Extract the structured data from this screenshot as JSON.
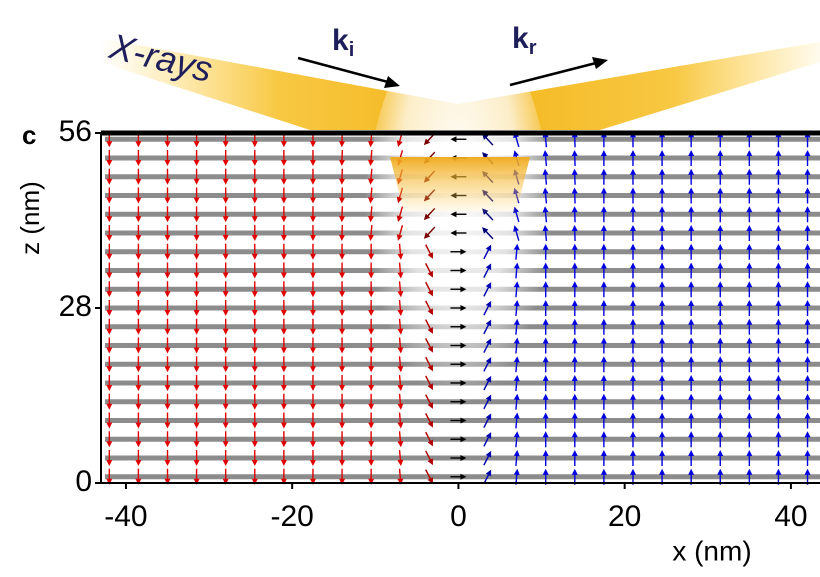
{
  "chart_data": {
    "type": "vector-field",
    "panel_label": "c",
    "annotations": {
      "beam": "X-rays",
      "k_i": {
        "base": "k",
        "sub": "i"
      },
      "k_r": {
        "base": "k",
        "sub": "r"
      }
    },
    "xlabel": "x (nm)",
    "ylabel": "z (nm)",
    "xlim": [
      -43,
      43.5
    ],
    "ylim": [
      0,
      56
    ],
    "xticks": [
      -40,
      -20,
      0,
      20,
      40
    ],
    "yticks": [
      0,
      28,
      56
    ],
    "colors": {
      "down": "#e00000",
      "up": "#0000e0",
      "in_plane": "#000000"
    },
    "x": [
      -42,
      -38.5,
      -35,
      -31.5,
      -28,
      -24.5,
      -21,
      -17.5,
      -14,
      -10.5,
      -7,
      -3.5,
      0,
      3.5,
      7,
      10.5,
      14,
      17.5,
      21,
      24.5,
      28,
      31.5,
      35,
      38.5,
      42
    ],
    "z": [
      1,
      4,
      7,
      10,
      13,
      16,
      19,
      22,
      25,
      28,
      31,
      34,
      37,
      40,
      43,
      46,
      49,
      52,
      55
    ],
    "angles": [
      [
        -90,
        -90,
        -90,
        -90,
        -90,
        -90,
        -90,
        -90,
        -90,
        -90,
        -85,
        -63,
        0,
        63,
        85,
        90,
        90,
        90,
        90,
        90,
        90,
        90,
        90,
        90,
        90
      ],
      [
        -90,
        -90,
        -90,
        -90,
        -90,
        -90,
        -90,
        -90,
        -90,
        -90,
        -85,
        -63,
        0,
        63,
        85,
        90,
        90,
        90,
        90,
        90,
        90,
        90,
        90,
        90,
        90
      ],
      [
        -90,
        -90,
        -90,
        -90,
        -90,
        -90,
        -90,
        -90,
        -90,
        -90,
        -85,
        -63,
        0,
        63,
        85,
        90,
        90,
        90,
        90,
        90,
        90,
        90,
        90,
        90,
        90
      ],
      [
        -90,
        -90,
        -90,
        -90,
        -90,
        -90,
        -90,
        -90,
        -90,
        -90,
        -85,
        -63,
        0,
        63,
        85,
        90,
        90,
        90,
        90,
        90,
        90,
        90,
        90,
        90,
        90
      ],
      [
        -90,
        -90,
        -90,
        -90,
        -90,
        -90,
        -90,
        -90,
        -90,
        -90,
        -85,
        -63,
        0,
        63,
        85,
        90,
        90,
        90,
        90,
        90,
        90,
        90,
        90,
        90,
        90
      ],
      [
        -90,
        -90,
        -90,
        -90,
        -90,
        -90,
        -90,
        -90,
        -90,
        -90,
        -85,
        -63,
        0,
        63,
        85,
        90,
        90,
        90,
        90,
        90,
        90,
        90,
        90,
        90,
        90
      ],
      [
        -90,
        -90,
        -90,
        -90,
        -90,
        -90,
        -90,
        -90,
        -90,
        -90,
        -85,
        -63,
        0,
        63,
        85,
        90,
        90,
        90,
        90,
        90,
        90,
        90,
        90,
        90,
        90
      ],
      [
        -90,
        -90,
        -90,
        -90,
        -90,
        -90,
        -90,
        -90,
        -90,
        -90,
        -85,
        -63,
        0,
        63,
        85,
        90,
        90,
        90,
        90,
        90,
        90,
        90,
        90,
        90,
        90
      ],
      [
        -90,
        -90,
        -90,
        -90,
        -90,
        -90,
        -90,
        -90,
        -90,
        -90,
        -85,
        -63,
        0,
        63,
        85,
        90,
        90,
        90,
        90,
        90,
        90,
        90,
        90,
        90,
        90
      ],
      [
        -90,
        -90,
        -90,
        -90,
        -90,
        -90,
        -90,
        -90,
        -90,
        -90,
        -85,
        -63,
        0,
        63,
        85,
        90,
        90,
        90,
        90,
        90,
        90,
        90,
        90,
        90,
        90
      ],
      [
        -90,
        -90,
        -90,
        -90,
        -90,
        -90,
        -90,
        -90,
        -90,
        -90,
        -85,
        -63,
        0,
        63,
        85,
        90,
        90,
        90,
        90,
        90,
        90,
        90,
        90,
        90,
        90
      ],
      [
        -90,
        -90,
        -90,
        -90,
        -90,
        -90,
        -90,
        -90,
        -90,
        -90,
        -85,
        -63,
        0,
        63,
        85,
        90,
        90,
        90,
        90,
        90,
        90,
        90,
        90,
        90,
        90
      ],
      [
        -90,
        -90,
        -90,
        -90,
        -90,
        -90,
        -90,
        -90,
        -90,
        -90,
        -85,
        -63,
        0,
        63,
        85,
        90,
        90,
        90,
        90,
        90,
        90,
        90,
        90,
        90,
        90
      ],
      [
        -90,
        -90,
        -90,
        -90,
        -90,
        -90,
        -90,
        -90,
        -92,
        -95,
        -106,
        -133,
        180,
        133,
        106,
        95,
        92,
        90,
        90,
        90,
        90,
        90,
        90,
        90,
        90
      ],
      [
        -90,
        -90,
        -90,
        -90,
        -90,
        -90,
        -90,
        -90,
        -92,
        -95,
        -106,
        -133,
        180,
        133,
        106,
        95,
        92,
        90,
        90,
        90,
        90,
        90,
        90,
        90,
        90
      ],
      [
        -90,
        -90,
        -90,
        -90,
        -90,
        -90,
        -90,
        -90,
        -92,
        -95,
        -106,
        -133,
        180,
        133,
        106,
        95,
        92,
        90,
        90,
        90,
        90,
        90,
        90,
        90,
        90
      ],
      [
        -90,
        -90,
        -90,
        -90,
        -90,
        -90,
        -90,
        -90,
        -92,
        -95,
        -106,
        -133,
        180,
        133,
        106,
        95,
        92,
        90,
        90,
        90,
        90,
        90,
        90,
        90,
        90
      ],
      [
        -90,
        -90,
        -90,
        -90,
        -90,
        -90,
        -90,
        -90,
        -92,
        -95,
        -106,
        -133,
        180,
        133,
        106,
        95,
        92,
        90,
        90,
        90,
        90,
        90,
        90,
        90,
        90
      ],
      [
        -90,
        -90,
        -90,
        -90,
        -90,
        -90,
        -90,
        -90,
        -92,
        -95,
        -106,
        -133,
        180,
        133,
        106,
        95,
        92,
        90,
        90,
        90,
        90,
        90,
        90,
        90,
        90
      ]
    ]
  }
}
